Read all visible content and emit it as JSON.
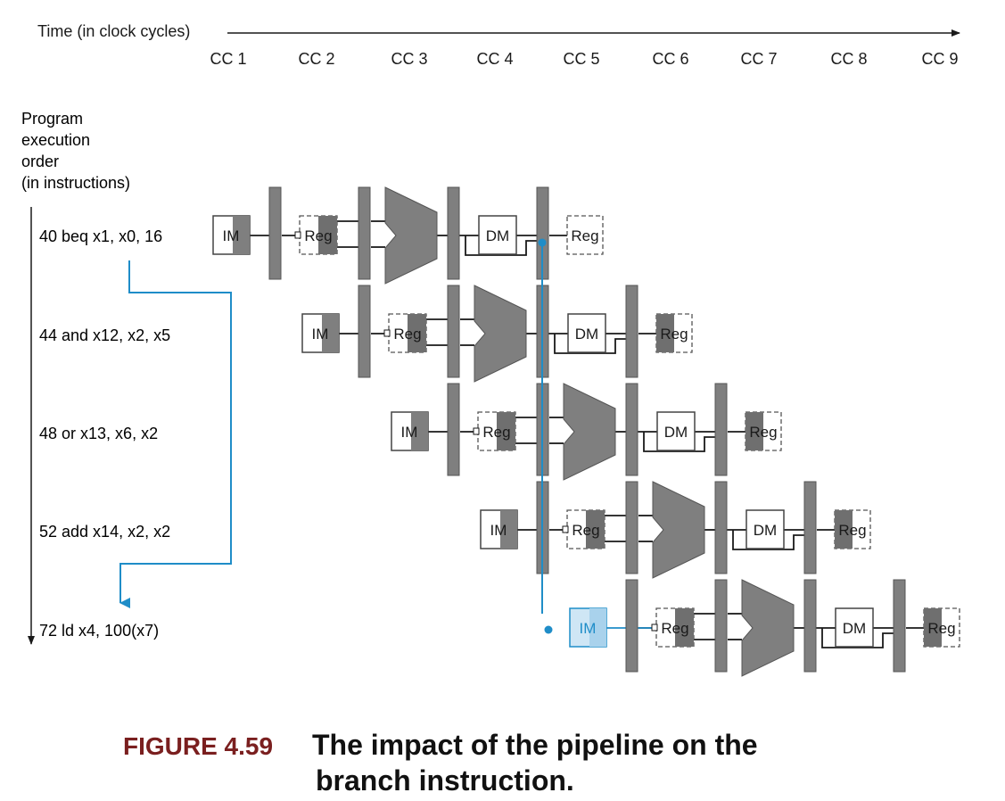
{
  "time_axis": {
    "label": "Time (in clock cycles)",
    "cycles": [
      "CC 1",
      "CC 2",
      "CC 3",
      "CC 4",
      "CC 5",
      "CC 6",
      "CC 7",
      "CC 8",
      "CC 9"
    ]
  },
  "order_axis": {
    "label_lines": [
      "Program",
      "execution",
      "order",
      "(in instructions)"
    ]
  },
  "instructions": [
    "40 beq x1, x0, 16",
    "44 and x12, x2, x5",
    "48 or x13, x6, x2",
    "52 add x14, x2, x2",
    "72 ld x4, 100(x7)"
  ],
  "stages": {
    "im": "IM",
    "reg": "Reg",
    "dm": "DM"
  },
  "caption": {
    "number": "FIGURE 4.59",
    "lines": [
      "The impact of the pipeline on the",
      "branch instruction."
    ]
  },
  "colors": {
    "pipeline_gray": "#7f7f7f",
    "register_dark": "#6f6f6f",
    "branch_blue": "#1f8dc8",
    "im_highlight_fill": "#cfe6f5",
    "caption_number": "#7a1f1f"
  }
}
